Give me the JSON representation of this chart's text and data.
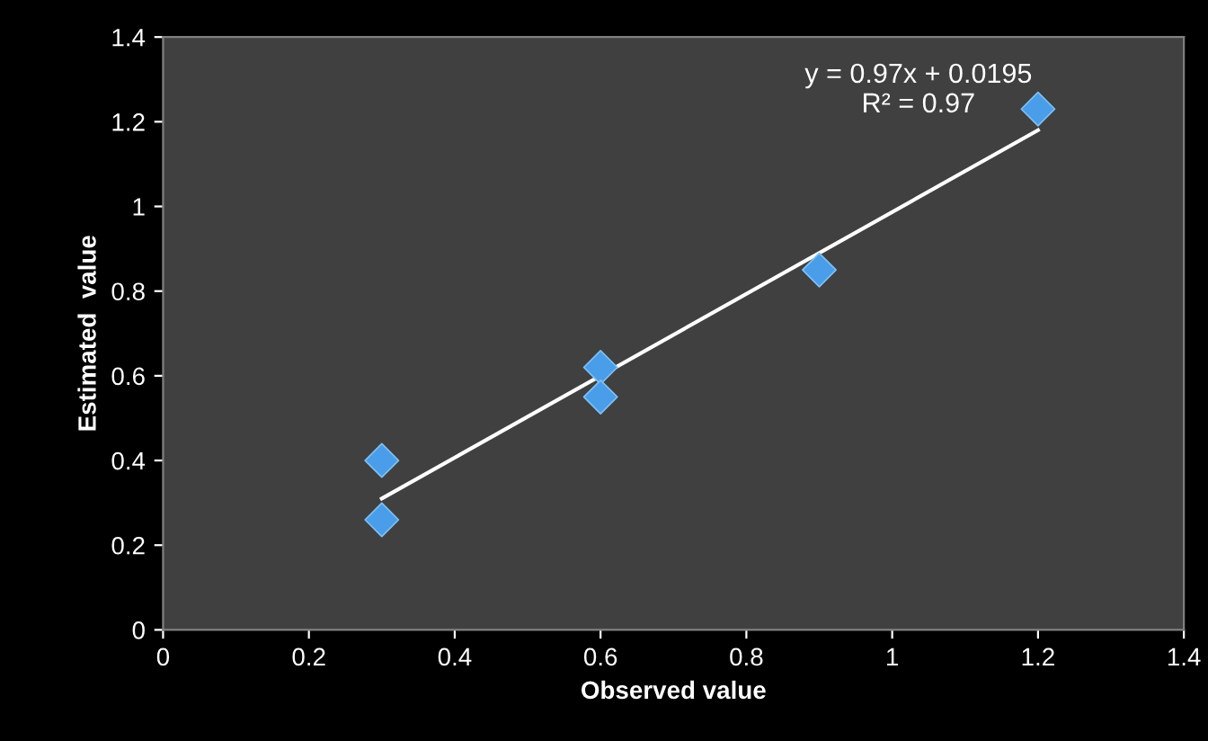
{
  "chart_data": {
    "type": "scatter",
    "xlabel": "Observed value",
    "ylabel": "Estimated  value",
    "series": [
      {
        "color": "#4a9de8",
        "marker": "diamond",
        "x": [
          0.3,
          0.3,
          0.6,
          0.6,
          0.9,
          1.2
        ],
        "values": [
          0.4,
          0.26,
          0.62,
          0.55,
          0.85,
          1.23
        ]
      },
      {
        "type": "line",
        "color": "#ffffff",
        "marker": "none",
        "line_style": "solid",
        "x": [
          0.3,
          1.2
        ],
        "values": [
          0.31,
          1.18
        ]
      }
    ],
    "annotations": [
      "y = 0.97x + 0.0195\nR² = 0.97"
    ],
    "xlim": [
      0,
      1.4
    ],
    "xticks": [
      0,
      0.2,
      0.4,
      0.6,
      0.8,
      1,
      1.2,
      1.4
    ],
    "ylim": [
      0,
      1.4
    ],
    "yticks": [
      0,
      0.2,
      0.4,
      0.6,
      0.8,
      1,
      1.2,
      1.4
    ],
    "grid": false,
    "legend": false
  }
}
